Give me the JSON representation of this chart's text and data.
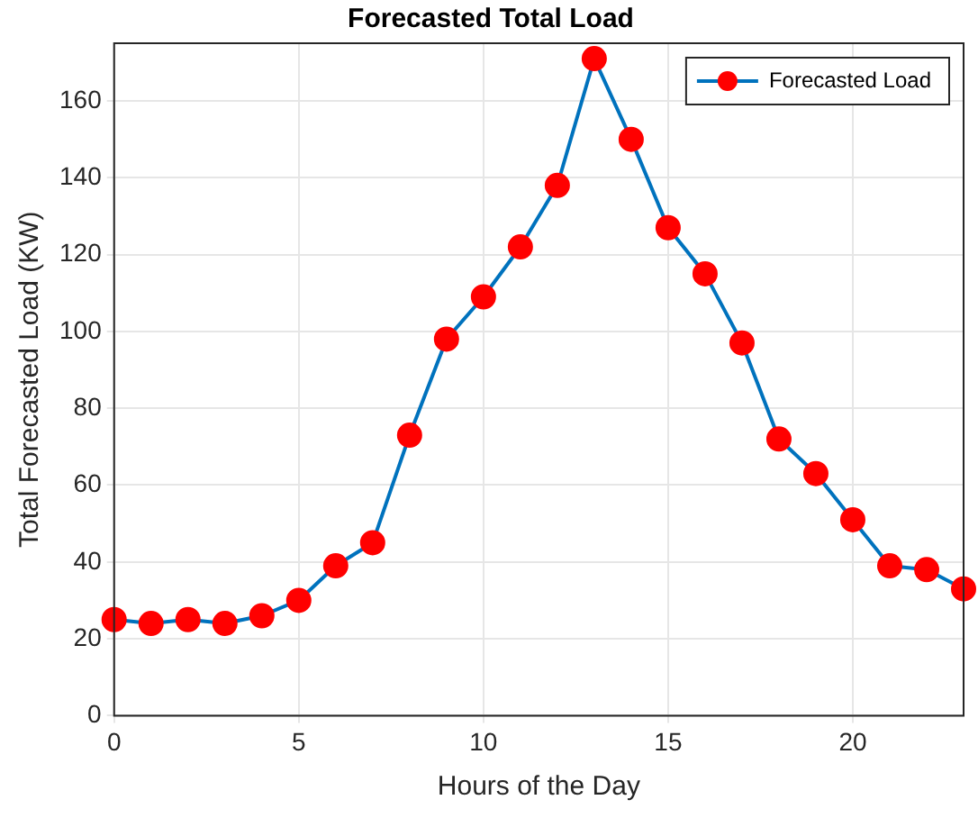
{
  "chart_data": {
    "type": "line",
    "title": "Forecasted Total Load",
    "xlabel": "Hours of the Day",
    "ylabel": "Total Forecasted Load (KW)",
    "x": [
      0,
      1,
      2,
      3,
      4,
      5,
      6,
      7,
      8,
      9,
      10,
      11,
      12,
      13,
      14,
      15,
      16,
      17,
      18,
      19,
      20,
      21,
      22,
      23
    ],
    "series": [
      {
        "name": "Forecasted Load",
        "color": "#0072bd",
        "values": [
          25,
          24,
          25,
          24,
          26,
          30,
          39,
          45,
          73,
          98,
          109,
          122,
          138,
          171,
          150,
          127,
          115,
          97,
          72,
          63,
          51,
          39,
          38,
          33
        ]
      }
    ],
    "xlim": [
      0,
      23
    ],
    "xticks": [
      0,
      5,
      10,
      15,
      20
    ],
    "ylim": [
      0,
      175
    ],
    "yticks": [
      0,
      20,
      40,
      60,
      80,
      100,
      120,
      140,
      160
    ],
    "grid": true,
    "legend": "top right",
    "marker": "circle",
    "line_style": "solid"
  }
}
